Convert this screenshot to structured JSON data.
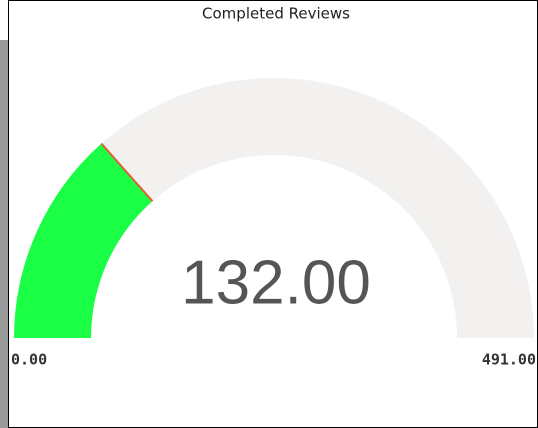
{
  "chart_data": {
    "type": "gauge",
    "title": "Completed Reviews",
    "values": [
      132
    ],
    "value_labels": [
      "132.00"
    ],
    "color": "#1aff45",
    "track_color": "#f2f1f0",
    "ylim": [
      0,
      491
    ],
    "yticks": [
      {
        "value": 0,
        "label": "0.00"
      },
      {
        "value": 491,
        "label": "491.00"
      }
    ]
  }
}
